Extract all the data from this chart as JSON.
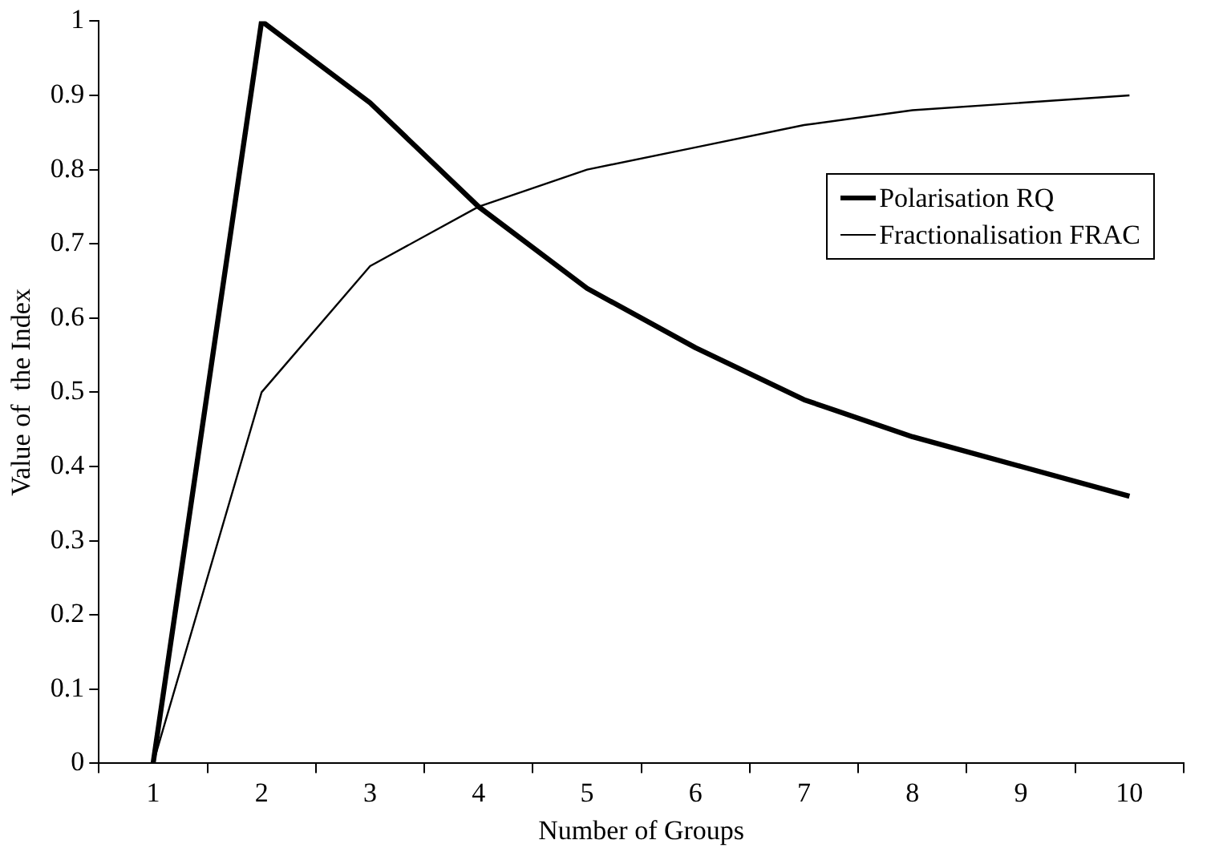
{
  "chart_data": {
    "type": "line",
    "xlabel": "Number of Groups",
    "ylabel": "Value of  the Index",
    "categories": [
      "1",
      "2",
      "3",
      "4",
      "5",
      "6",
      "7",
      "8",
      "9",
      "10"
    ],
    "series": [
      {
        "name": "Polarisation RQ",
        "color": "#000000",
        "values": [
          0,
          1,
          0.89,
          0.75,
          0.64,
          0.56,
          0.49,
          0.44,
          0.4,
          0.36
        ]
      },
      {
        "name": "Fractionalisation FRAC",
        "color": "#000000",
        "values": [
          0,
          0.5,
          0.67,
          0.75,
          0.8,
          0.83,
          0.86,
          0.88,
          0.89,
          0.9
        ]
      }
    ],
    "ylim": [
      0,
      1
    ],
    "yticks": [
      0,
      0.1,
      0.2,
      0.3,
      0.4,
      0.5,
      0.6,
      0.7,
      0.8,
      0.9,
      1
    ],
    "grid": false,
    "legend": "top right",
    "marker": "none",
    "line_style": "solid"
  }
}
